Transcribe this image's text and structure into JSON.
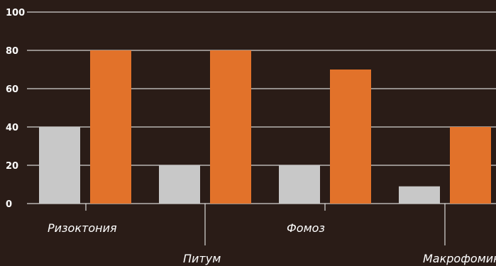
{
  "chart_data": {
    "type": "bar",
    "categories": [
      "Ризоктония",
      "Питум",
      "Фомоз",
      "Макрофомина"
    ],
    "series": [
      {
        "values": [
          40,
          20,
          20,
          9
        ],
        "color": "#c8c8c8"
      },
      {
        "values": [
          80,
          80,
          70,
          40
        ],
        "color": "#e2722a"
      }
    ],
    "yticks": [
      0,
      20,
      40,
      60,
      80,
      100
    ],
    "ylim": [
      0,
      100
    ],
    "grid": true,
    "colors": {
      "background": "#2a1c17",
      "grid": "#ffffff"
    }
  }
}
